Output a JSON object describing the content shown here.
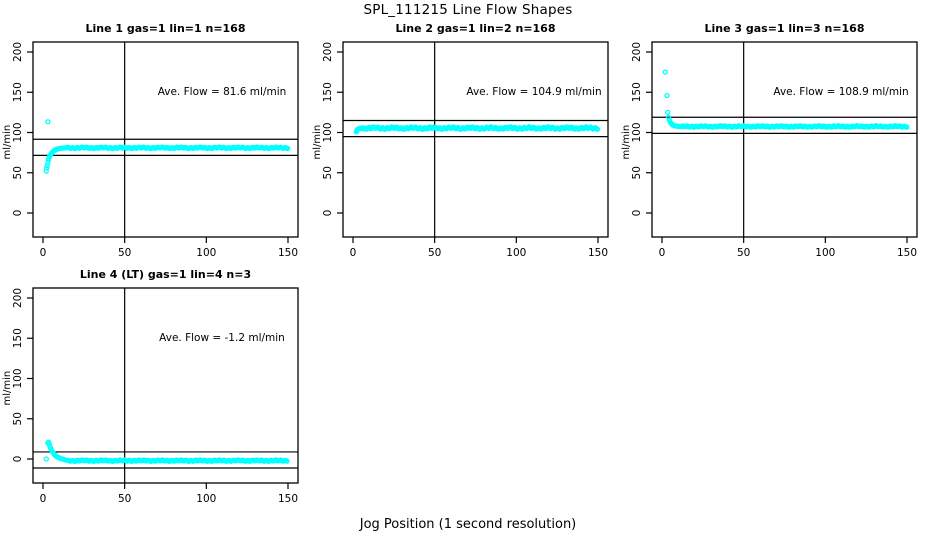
{
  "chart_data": {
    "type": "scatter",
    "title": "SPL_111215  Line Flow Shapes",
    "xlabel": "Jog Position (1 second resolution)",
    "ylabel": "ml/min",
    "point_color": "#00ffff",
    "axis_color": "#000000",
    "x_ticks": [
      0,
      50,
      100,
      150
    ],
    "y_ticks": [
      0,
      50,
      100,
      150,
      200
    ],
    "xlim": [
      -6,
      156
    ],
    "ylim": [
      -30,
      213
    ],
    "vline_x": 50,
    "legend": "none",
    "grid": false,
    "panels": [
      {
        "title": "Line 1 gas=1 lin=1 n=168",
        "ave_label": "Ave. Flow =  81.6  ml/min",
        "ave_flow": 81.6,
        "hlines": [
          91.6,
          71.6
        ],
        "outliers": [
          [
            3,
            113.4
          ]
        ],
        "rise": [
          [
            2,
            52
          ],
          [
            2.3,
            56
          ],
          [
            2.6,
            59
          ],
          [
            3,
            63
          ],
          [
            3.3,
            66
          ],
          [
            3.6,
            68
          ],
          [
            4,
            70
          ],
          [
            4.5,
            72
          ],
          [
            5,
            73.5
          ],
          [
            5.5,
            75
          ],
          [
            6,
            76
          ],
          [
            6.5,
            77
          ],
          [
            7,
            77.7
          ],
          [
            7.5,
            78.3
          ],
          [
            8,
            78.8
          ],
          [
            8.5,
            79.2
          ],
          [
            9,
            79.6
          ],
          [
            9.5,
            79.9
          ],
          [
            10,
            80.1
          ],
          [
            11,
            80.4
          ],
          [
            12,
            80.6
          ],
          [
            13,
            80.8
          ],
          [
            14,
            80.9
          ]
        ],
        "band": {
          "from": 14.7,
          "to": 150,
          "step": 0.7,
          "level": 81,
          "jitter": 0.6
        }
      },
      {
        "title": "Line 2 gas=1 lin=2 n=168",
        "ave_label": "Ave. Flow =  104.9  ml/min",
        "ave_flow": 104.9,
        "hlines": [
          114.9,
          94.9
        ],
        "outliers": [],
        "rise": [
          [
            2,
            101
          ],
          [
            2.4,
            102.5
          ],
          [
            2.8,
            103.5
          ],
          [
            3.2,
            104.2
          ],
          [
            3.6,
            104.8
          ],
          [
            4,
            105.1
          ],
          [
            4.5,
            105.3
          ],
          [
            5,
            105.4
          ]
        ],
        "band": {
          "from": 5.5,
          "to": 150,
          "step": 0.7,
          "level": 105.5,
          "jitter": 1.0
        }
      },
      {
        "title": "Line 3 gas=1 lin=3 n=168",
        "ave_label": "Ave. Flow =  108.9  ml/min",
        "ave_flow": 108.9,
        "hlines": [
          118.9,
          98.9
        ],
        "outliers": [
          [
            2,
            175
          ],
          [
            3,
            146
          ]
        ],
        "rise": [
          [
            3.5,
            125
          ],
          [
            4,
            119
          ],
          [
            4.5,
            115.5
          ],
          [
            5,
            113
          ],
          [
            5.5,
            111.5
          ],
          [
            6,
            110.4
          ],
          [
            6.5,
            109.6
          ],
          [
            7,
            109
          ],
          [
            7.5,
            108.6
          ],
          [
            8,
            108.3
          ],
          [
            9,
            107.9
          ],
          [
            10,
            107.7
          ],
          [
            11,
            107.6
          ],
          [
            12,
            107.5
          ]
        ],
        "band": {
          "from": 12.7,
          "to": 150,
          "step": 0.7,
          "level": 107.5,
          "jitter": 0.6
        }
      },
      {
        "title": "Line 4 (LT) gas=1 lin=4 n=3",
        "ave_label": "Ave. Flow =  -1.2  ml/min",
        "ave_flow": -1.2,
        "hlines": [
          8.8,
          -11.2
        ],
        "outliers": [
          [
            2,
            0
          ]
        ],
        "rise": [
          [
            3,
            20
          ],
          [
            3.4,
            21
          ],
          [
            3.8,
            18.5
          ],
          [
            4.2,
            16
          ],
          [
            4.6,
            13.8
          ],
          [
            5,
            11.8
          ],
          [
            5.5,
            9.8
          ],
          [
            6,
            8.2
          ],
          [
            6.5,
            6.8
          ],
          [
            7,
            5.6
          ],
          [
            7.5,
            4.6
          ],
          [
            8,
            3.7
          ],
          [
            8.5,
            3
          ],
          [
            9,
            2.3
          ],
          [
            9.5,
            1.8
          ],
          [
            10,
            1.3
          ],
          [
            11,
            0.5
          ],
          [
            12,
            -0.1
          ],
          [
            13,
            -0.7
          ],
          [
            14,
            -1.2
          ],
          [
            15,
            -1.6
          ]
        ],
        "band": {
          "from": 15.7,
          "to": 150,
          "step": 0.7,
          "level": -2,
          "jitter": 0.6
        }
      }
    ]
  }
}
